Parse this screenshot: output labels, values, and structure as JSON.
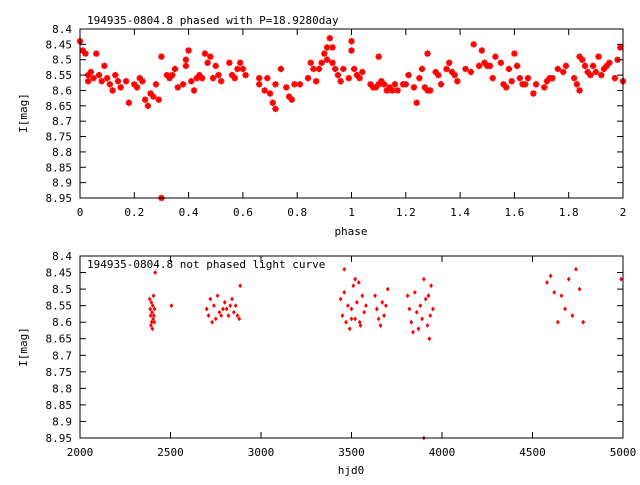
{
  "colors": {
    "points": "#ff0000",
    "axes": "#000000",
    "background": "#ffffff"
  },
  "chart_data": [
    {
      "type": "scatter",
      "title": "194935-0804.8 phased with P=18.9280day",
      "xlabel": "phase",
      "ylabel": "I[mag]",
      "xlim": [
        0,
        2
      ],
      "ylim": [
        8.4,
        8.95
      ],
      "y_inverted": true,
      "grid": false,
      "marker": "star",
      "x_ticks": [
        0,
        0.2,
        0.4,
        0.6,
        0.8,
        1,
        1.2,
        1.4,
        1.6,
        1.8,
        2
      ],
      "x_tick_labels": [
        "0",
        "0.2",
        "0.4",
        "0.6",
        "0.8",
        "1",
        "1.2",
        "1.4",
        "1.6",
        "1.8",
        "2"
      ],
      "y_ticks": [
        8.4,
        8.45,
        8.5,
        8.55,
        8.6,
        8.65,
        8.7,
        8.75,
        8.8,
        8.85,
        8.9,
        8.95
      ],
      "y_tick_labels": [
        "8.4",
        "8.45",
        "8.5",
        "8.55",
        "8.6",
        "8.65",
        "8.7",
        "8.75",
        "8.8",
        "8.85",
        "8.9",
        "8.95"
      ],
      "points": [
        [
          0.0,
          8.44
        ],
        [
          0.01,
          8.47
        ],
        [
          0.02,
          8.48
        ],
        [
          0.03,
          8.55
        ],
        [
          0.03,
          8.57
        ],
        [
          0.04,
          8.54
        ],
        [
          0.05,
          8.56
        ],
        [
          0.06,
          8.48
        ],
        [
          0.07,
          8.55
        ],
        [
          0.08,
          8.57
        ],
        [
          0.09,
          8.52
        ],
        [
          0.1,
          8.56
        ],
        [
          0.11,
          8.58
        ],
        [
          0.12,
          8.6
        ],
        [
          0.13,
          8.55
        ],
        [
          0.14,
          8.57
        ],
        [
          0.15,
          8.59
        ],
        [
          0.17,
          8.57
        ],
        [
          0.18,
          8.64
        ],
        [
          0.2,
          8.58
        ],
        [
          0.21,
          8.59
        ],
        [
          0.22,
          8.56
        ],
        [
          0.23,
          8.57
        ],
        [
          0.24,
          8.63
        ],
        [
          0.25,
          8.65
        ],
        [
          0.26,
          8.61
        ],
        [
          0.27,
          8.62
        ],
        [
          0.28,
          8.58
        ],
        [
          0.29,
          8.63
        ],
        [
          0.3,
          8.49
        ],
        [
          0.3,
          8.95
        ],
        [
          0.32,
          8.55
        ],
        [
          0.33,
          8.56
        ],
        [
          0.34,
          8.55
        ],
        [
          0.35,
          8.53
        ],
        [
          0.36,
          8.59
        ],
        [
          0.38,
          8.58
        ],
        [
          0.39,
          8.5
        ],
        [
          0.39,
          8.52
        ],
        [
          0.4,
          8.47
        ],
        [
          0.41,
          8.57
        ],
        [
          0.42,
          8.6
        ],
        [
          0.43,
          8.56
        ],
        [
          0.44,
          8.55
        ],
        [
          0.45,
          8.56
        ],
        [
          0.46,
          8.48
        ],
        [
          0.47,
          8.51
        ],
        [
          0.48,
          8.49
        ],
        [
          0.49,
          8.56
        ],
        [
          0.5,
          8.52
        ],
        [
          0.51,
          8.55
        ],
        [
          0.52,
          8.57
        ],
        [
          0.55,
          8.51
        ],
        [
          0.56,
          8.55
        ],
        [
          0.57,
          8.56
        ],
        [
          0.58,
          8.53
        ],
        [
          0.59,
          8.51
        ],
        [
          0.6,
          8.53
        ],
        [
          0.61,
          8.55
        ],
        [
          0.66,
          8.56
        ],
        [
          0.66,
          8.58
        ],
        [
          0.68,
          8.6
        ],
        [
          0.69,
          8.56
        ],
        [
          0.7,
          8.61
        ],
        [
          0.71,
          8.64
        ],
        [
          0.72,
          8.66
        ],
        [
          0.72,
          8.58
        ],
        [
          0.74,
          8.53
        ],
        [
          0.76,
          8.59
        ],
        [
          0.77,
          8.62
        ],
        [
          0.78,
          8.63
        ],
        [
          0.79,
          8.58
        ],
        [
          0.81,
          8.58
        ],
        [
          0.84,
          8.56
        ],
        [
          0.85,
          8.51
        ],
        [
          0.86,
          8.53
        ],
        [
          0.87,
          8.57
        ],
        [
          0.88,
          8.53
        ],
        [
          0.89,
          8.51
        ],
        [
          0.9,
          8.48
        ],
        [
          0.91,
          8.5
        ],
        [
          0.91,
          8.46
        ],
        [
          0.92,
          8.43
        ],
        [
          0.93,
          8.46
        ],
        [
          0.93,
          8.51
        ],
        [
          0.94,
          8.53
        ],
        [
          0.95,
          8.55
        ],
        [
          0.96,
          8.57
        ],
        [
          0.97,
          8.53
        ],
        [
          0.99,
          8.56
        ],
        [
          1.0,
          8.44
        ],
        [
          1.0,
          8.47
        ],
        [
          1.01,
          8.53
        ],
        [
          1.02,
          8.55
        ],
        [
          1.03,
          8.56
        ],
        [
          1.04,
          8.54
        ],
        [
          1.07,
          8.58
        ],
        [
          1.08,
          8.59
        ],
        [
          1.09,
          8.59
        ],
        [
          1.1,
          8.58
        ],
        [
          1.1,
          8.49
        ],
        [
          1.11,
          8.57
        ],
        [
          1.12,
          8.58
        ],
        [
          1.13,
          8.6
        ],
        [
          1.14,
          8.59
        ],
        [
          1.15,
          8.6
        ],
        [
          1.16,
          8.58
        ],
        [
          1.17,
          8.6
        ],
        [
          1.19,
          8.58
        ],
        [
          1.2,
          8.58
        ],
        [
          1.21,
          8.55
        ],
        [
          1.23,
          8.59
        ],
        [
          1.24,
          8.64
        ],
        [
          1.25,
          8.56
        ],
        [
          1.26,
          8.53
        ],
        [
          1.27,
          8.59
        ],
        [
          1.28,
          8.6
        ],
        [
          1.28,
          8.48
        ],
        [
          1.29,
          8.6
        ],
        [
          1.31,
          8.54
        ],
        [
          1.32,
          8.55
        ],
        [
          1.33,
          8.58
        ],
        [
          1.35,
          8.53
        ],
        [
          1.36,
          8.51
        ],
        [
          1.37,
          8.54
        ],
        [
          1.38,
          8.55
        ],
        [
          1.39,
          8.57
        ],
        [
          1.42,
          8.53
        ],
        [
          1.44,
          8.54
        ],
        [
          1.45,
          8.45
        ],
        [
          1.47,
          8.52
        ],
        [
          1.48,
          8.47
        ],
        [
          1.49,
          8.51
        ],
        [
          1.5,
          8.52
        ],
        [
          1.51,
          8.52
        ],
        [
          1.52,
          8.56
        ],
        [
          1.53,
          8.49
        ],
        [
          1.55,
          8.51
        ],
        [
          1.56,
          8.58
        ],
        [
          1.57,
          8.59
        ],
        [
          1.58,
          8.53
        ],
        [
          1.59,
          8.57
        ],
        [
          1.6,
          8.48
        ],
        [
          1.61,
          8.52
        ],
        [
          1.62,
          8.56
        ],
        [
          1.63,
          8.58
        ],
        [
          1.64,
          8.58
        ],
        [
          1.65,
          8.56
        ],
        [
          1.67,
          8.61
        ],
        [
          1.68,
          8.58
        ],
        [
          1.71,
          8.59
        ],
        [
          1.72,
          8.57
        ],
        [
          1.73,
          8.56
        ],
        [
          1.74,
          8.56
        ],
        [
          1.76,
          8.53
        ],
        [
          1.78,
          8.54
        ],
        [
          1.79,
          8.52
        ],
        [
          1.82,
          8.56
        ],
        [
          1.83,
          8.58
        ],
        [
          1.84,
          8.49
        ],
        [
          1.84,
          8.6
        ],
        [
          1.85,
          8.5
        ],
        [
          1.86,
          8.52
        ],
        [
          1.87,
          8.54
        ],
        [
          1.88,
          8.55
        ],
        [
          1.89,
          8.52
        ],
        [
          1.9,
          8.54
        ],
        [
          1.91,
          8.49
        ],
        [
          1.92,
          8.55
        ],
        [
          1.93,
          8.53
        ],
        [
          1.94,
          8.52
        ],
        [
          1.95,
          8.51
        ],
        [
          1.97,
          8.56
        ],
        [
          1.98,
          8.5
        ],
        [
          1.99,
          8.46
        ],
        [
          2.0,
          8.57
        ]
      ]
    },
    {
      "type": "scatter",
      "title": "194935-0804.8 not phased light curve",
      "xlabel": "hjd0",
      "ylabel": "I[mag]",
      "xlim": [
        2000,
        5000
      ],
      "ylim": [
        8.4,
        8.95
      ],
      "y_inverted": true,
      "grid": false,
      "marker": "diamond",
      "x_ticks": [
        2000,
        2500,
        3000,
        3500,
        4000,
        4500,
        5000
      ],
      "x_tick_labels": [
        "2000",
        "2500",
        "3000",
        "3500",
        "4000",
        "4500",
        "5000"
      ],
      "y_ticks": [
        8.4,
        8.45,
        8.5,
        8.55,
        8.6,
        8.65,
        8.7,
        8.75,
        8.8,
        8.85,
        8.9,
        8.95
      ],
      "y_tick_labels": [
        "8.4",
        "8.45",
        "8.5",
        "8.55",
        "8.6",
        "8.65",
        "8.7",
        "8.75",
        "8.8",
        "8.85",
        "8.9",
        "8.95"
      ],
      "points": [
        [
          2385,
          8.53
        ],
        [
          2388,
          8.56
        ],
        [
          2390,
          8.58
        ],
        [
          2392,
          8.61
        ],
        [
          2394,
          8.54
        ],
        [
          2396,
          8.6
        ],
        [
          2398,
          8.57
        ],
        [
          2400,
          8.62
        ],
        [
          2402,
          8.55
        ],
        [
          2404,
          8.59
        ],
        [
          2406,
          8.52
        ],
        [
          2408,
          8.58
        ],
        [
          2410,
          8.6
        ],
        [
          2412,
          8.56
        ],
        [
          2415,
          8.45
        ],
        [
          2505,
          8.55
        ],
        [
          2700,
          8.56
        ],
        [
          2710,
          8.58
        ],
        [
          2720,
          8.53
        ],
        [
          2730,
          8.6
        ],
        [
          2740,
          8.55
        ],
        [
          2750,
          8.59
        ],
        [
          2760,
          8.52
        ],
        [
          2770,
          8.57
        ],
        [
          2780,
          8.58
        ],
        [
          2790,
          8.56
        ],
        [
          2800,
          8.54
        ],
        [
          2810,
          8.56
        ],
        [
          2820,
          8.58
        ],
        [
          2830,
          8.55
        ],
        [
          2840,
          8.53
        ],
        [
          2850,
          8.57
        ],
        [
          2860,
          8.55
        ],
        [
          2870,
          8.58
        ],
        [
          2880,
          8.59
        ],
        [
          2885,
          8.49
        ],
        [
          3440,
          8.53
        ],
        [
          3450,
          8.58
        ],
        [
          3460,
          8.51
        ],
        [
          3470,
          8.6
        ],
        [
          3480,
          8.55
        ],
        [
          3490,
          8.62
        ],
        [
          3500,
          8.56
        ],
        [
          3510,
          8.49
        ],
        [
          3520,
          8.59
        ],
        [
          3530,
          8.54
        ],
        [
          3540,
          8.48
        ],
        [
          3550,
          8.61
        ],
        [
          3560,
          8.52
        ],
        [
          3570,
          8.57
        ],
        [
          3580,
          8.55
        ],
        [
          3460,
          8.44
        ],
        [
          3500,
          8.59
        ],
        [
          3520,
          8.47
        ],
        [
          3545,
          8.6
        ],
        [
          3630,
          8.52
        ],
        [
          3640,
          8.56
        ],
        [
          3650,
          8.59
        ],
        [
          3660,
          8.61
        ],
        [
          3670,
          8.54
        ],
        [
          3680,
          8.58
        ],
        [
          3690,
          8.55
        ],
        [
          3700,
          8.5
        ],
        [
          3810,
          8.52
        ],
        [
          3820,
          8.56
        ],
        [
          3830,
          8.6
        ],
        [
          3840,
          8.63
        ],
        [
          3850,
          8.51
        ],
        [
          3860,
          8.57
        ],
        [
          3870,
          8.62
        ],
        [
          3880,
          8.55
        ],
        [
          3890,
          8.59
        ],
        [
          3900,
          8.47
        ],
        [
          3910,
          8.53
        ],
        [
          3920,
          8.61
        ],
        [
          3930,
          8.65
        ],
        [
          3940,
          8.49
        ],
        [
          3950,
          8.56
        ],
        [
          3900,
          8.95
        ],
        [
          3925,
          8.52
        ],
        [
          3935,
          8.58
        ],
        [
          4580,
          8.48
        ],
        [
          4600,
          8.46
        ],
        [
          4620,
          8.51
        ],
        [
          4640,
          8.6
        ],
        [
          4660,
          8.52
        ],
        [
          4680,
          8.56
        ],
        [
          4700,
          8.47
        ],
        [
          4720,
          8.58
        ],
        [
          4740,
          8.44
        ],
        [
          4760,
          8.5
        ],
        [
          4780,
          8.6
        ],
        [
          4990,
          8.47
        ]
      ]
    }
  ]
}
